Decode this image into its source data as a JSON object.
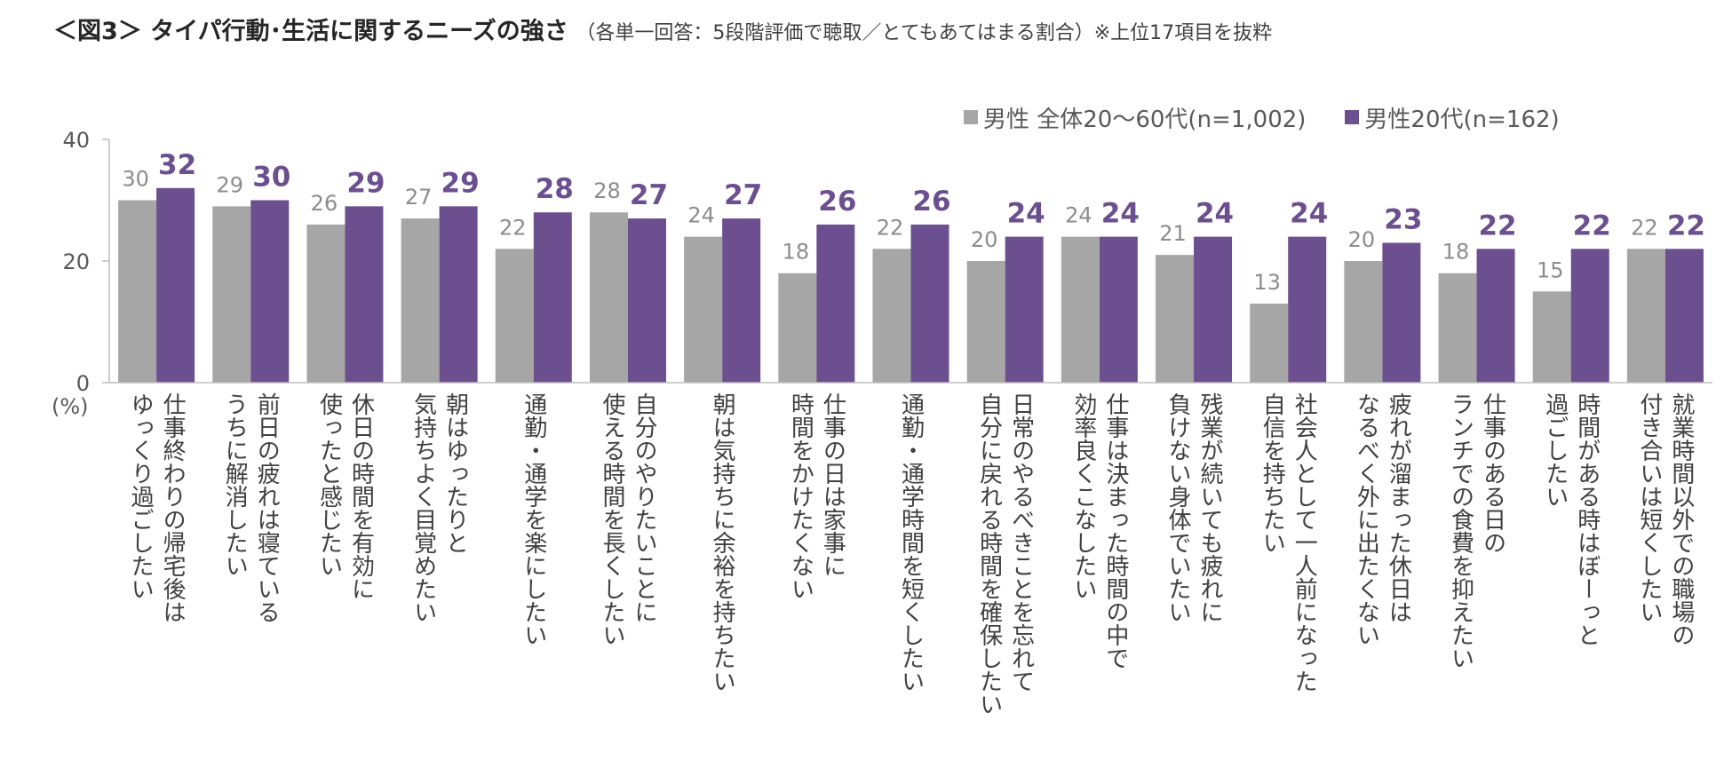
{
  "title": {
    "main": "＜図3＞ タイパ行動･生活に関するニーズの強さ",
    "sub": "（各単一回答：5段階評価で聴取／とてもあてはまる割合）※上位17項目を抜粋"
  },
  "colors": {
    "series_all": "#a6a6a6",
    "series_20s": "#6b4f8f",
    "label_20s": "#6b4f8f",
    "label_all": "#8c8c8c",
    "axis": "#bfbfbf"
  },
  "chart_data": {
    "type": "bar",
    "unit_label": "(%)",
    "ylim": [
      0,
      40
    ],
    "yticks": [
      0,
      20,
      40
    ],
    "legend_position": "top-right",
    "series": [
      {
        "name": "男性 全体20～60代(n=1,002)",
        "values": [
          30,
          29,
          26,
          27,
          22,
          28,
          24,
          18,
          22,
          20,
          24,
          21,
          13,
          20,
          18,
          15,
          22
        ]
      },
      {
        "name": "男性20代(n=162)",
        "values": [
          32,
          30,
          29,
          29,
          28,
          27,
          27,
          26,
          26,
          24,
          24,
          24,
          24,
          23,
          22,
          22,
          22
        ]
      }
    ],
    "categories": [
      [
        "仕事終わりの帰宅後は",
        "ゆっくり過ごしたい"
      ],
      [
        "前日の疲れは寝ている",
        "うちに解消したい"
      ],
      [
        "休日の時間を有効に",
        "使ったと感じたい"
      ],
      [
        "朝はゆったりと",
        "気持ちよく目覚めたい"
      ],
      [
        "通勤・通学を楽にしたい"
      ],
      [
        "自分のやりたいことに",
        "使える時間を長くしたい"
      ],
      [
        "朝は気持ちに余裕を持ちたい"
      ],
      [
        "仕事の日は家事に",
        "時間をかけたくない"
      ],
      [
        "通勤・通学時間を短くしたい"
      ],
      [
        "日常のやるべきことを忘れて",
        "自分に戻れる時間を確保したい"
      ],
      [
        "仕事は決まった時間の中で",
        "効率良くこなしたい"
      ],
      [
        "残業が続いても疲れに",
        "負けない身体でいたい"
      ],
      [
        "社会人として一人前になった",
        "自信を持ちたい"
      ],
      [
        "疲れが溜まった休日は",
        "なるべく外に出たくない"
      ],
      [
        "仕事のある日の",
        "ランチでの食費を抑えたい"
      ],
      [
        "時間がある時はぼーっと",
        "過ごしたい"
      ],
      [
        "就業時間以外での職場の",
        "付き合いは短くしたい"
      ]
    ]
  }
}
